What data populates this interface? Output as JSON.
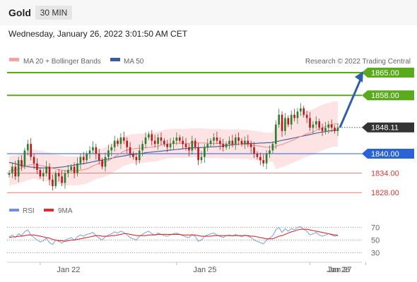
{
  "header": {
    "instrument": "Gold",
    "timeframe": "30 MIN",
    "datetime": "Wednesday, January 26, 2022 3:01:50 AM CET"
  },
  "legend": {
    "bollinger": "MA 20 + Bollinger Bands",
    "ma50": "MA 50",
    "credit": "Research © 2022 Trading Central",
    "rsi": "RSI",
    "rsi_ma": "9MA"
  },
  "colors": {
    "resistance": "#5aaa1e",
    "pivot": "#2a62d8",
    "support": "#e67b7b",
    "current": "#333333",
    "arrow": "#2f5fa6",
    "bollinger_band": "#fde3e3",
    "ma20": "#f08c8c",
    "ma50": "#3a5e95",
    "candle_up": "#2e7d32",
    "candle_down": "#b71c1c",
    "rsi": "#7a9ee0",
    "rsi_ma": "#d63030"
  },
  "chart_data": [
    {
      "type": "candlestick",
      "x_ticks": [
        "Jan 22",
        "Jan 25",
        "Jan 26",
        "Jan 27"
      ],
      "ylim": [
        1824,
        1868
      ],
      "levels": [
        {
          "label": "1865.00",
          "value": 1865.0,
          "kind": "resistance"
        },
        {
          "label": "1858.00",
          "value": 1858.0,
          "kind": "resistance"
        },
        {
          "label": "1848.11",
          "value": 1848.11,
          "kind": "current"
        },
        {
          "label": "1840.00",
          "value": 1840.0,
          "kind": "pivot"
        },
        {
          "label": "1834.00",
          "value": 1834.0,
          "kind": "support"
        },
        {
          "label": "1828.00",
          "value": 1828.0,
          "kind": "support"
        }
      ],
      "close": [
        1834,
        1836,
        1833,
        1838,
        1836,
        1841,
        1843,
        1839,
        1837,
        1835,
        1833,
        1834,
        1836,
        1832,
        1830,
        1834,
        1833,
        1831,
        1834,
        1835,
        1836,
        1834,
        1837,
        1839,
        1838,
        1840,
        1841,
        1842,
        1840,
        1838,
        1836,
        1839,
        1841,
        1842,
        1844,
        1843,
        1845,
        1844,
        1842,
        1840,
        1839,
        1838,
        1841,
        1843,
        1845,
        1846,
        1844,
        1843,
        1845,
        1844,
        1843,
        1842,
        1843,
        1844,
        1845,
        1844,
        1843,
        1842,
        1841,
        1844,
        1842,
        1838,
        1839,
        1842,
        1843,
        1844,
        1845,
        1844,
        1843,
        1842,
        1843,
        1844,
        1843,
        1845,
        1844,
        1843,
        1844,
        1843,
        1842,
        1840,
        1839,
        1838,
        1837,
        1840,
        1841,
        1843,
        1849,
        1852,
        1847,
        1851,
        1849,
        1852,
        1851,
        1853,
        1854,
        1852,
        1851,
        1848,
        1849,
        1850,
        1848,
        1847,
        1848,
        1849,
        1848,
        1847,
        1848.11
      ],
      "ma20": [
        1834.6,
        1834.9,
        1835.0,
        1835.3,
        1835.6,
        1836.0,
        1836.4,
        1836.6,
        1836.8,
        1836.6,
        1836.4,
        1836.2,
        1836.0,
        1835.8,
        1835.5,
        1835.3,
        1835.1,
        1834.9,
        1834.7,
        1834.7,
        1834.8,
        1834.7,
        1834.8,
        1834.9,
        1835.1,
        1835.3,
        1835.7,
        1836.2,
        1836.6,
        1836.9,
        1837.1,
        1837.5,
        1837.9,
        1838.4,
        1839.1,
        1839.6,
        1840.2,
        1840.8,
        1841.1,
        1841.4,
        1841.5,
        1841.6,
        1841.7,
        1841.7,
        1841.8,
        1841.9,
        1842.0,
        1842.1,
        1842.3,
        1842.6,
        1842.8,
        1843.0,
        1843.1,
        1843.2,
        1843.2,
        1843.2,
        1843.1,
        1843.1,
        1843.2,
        1843.4,
        1843.4,
        1843.3,
        1843.3,
        1843.3,
        1843.2,
        1843.1,
        1843.1,
        1843.2,
        1843.1,
        1843.0,
        1843.0,
        1843.0,
        1843.0,
        1843.0,
        1843.0,
        1842.9,
        1842.9,
        1842.8,
        1842.6,
        1842.6,
        1842.4,
        1842.3,
        1842.1,
        1842.0,
        1842.0,
        1842.0,
        1842.2,
        1842.6,
        1842.8,
        1843.2,
        1843.6,
        1844.0,
        1844.4,
        1844.9,
        1845.3,
        1845.7,
        1846.1,
        1846.4,
        1846.7,
        1847.2,
        1847.6,
        1848.0,
        1848.4,
        1848.7,
        1849.0,
        1849.2,
        1849.2
      ],
      "ma50": [
        1837.3,
        1837.1,
        1836.9,
        1836.6,
        1836.4,
        1836.2,
        1836.0,
        1835.9,
        1835.8,
        1835.7,
        1835.6,
        1835.6,
        1835.6,
        1835.6,
        1835.6,
        1835.7,
        1835.8,
        1835.9,
        1836.0,
        1836.2,
        1836.3,
        1836.5,
        1836.6,
        1836.8,
        1836.9,
        1837.1,
        1837.3,
        1837.5,
        1837.7,
        1837.9,
        1838.0,
        1838.2,
        1838.4,
        1838.6,
        1838.8,
        1839.0,
        1839.2,
        1839.3,
        1839.5,
        1839.7,
        1839.8,
        1839.9,
        1840.0,
        1840.1,
        1840.3,
        1840.4,
        1840.5,
        1840.6,
        1840.7,
        1840.8,
        1840.9,
        1841.0,
        1841.1,
        1841.2,
        1841.3,
        1841.4,
        1841.5,
        1841.6,
        1841.7,
        1841.8,
        1841.8,
        1841.9,
        1841.9,
        1842.0,
        1842.0,
        1842.1,
        1842.1,
        1842.2,
        1842.3,
        1842.4,
        1842.5,
        1842.6,
        1842.7,
        1842.8,
        1842.9,
        1843.0,
        1843.1,
        1843.1,
        1843.2,
        1843.2,
        1843.2,
        1843.3,
        1843.3,
        1843.4,
        1843.4,
        1843.5,
        1843.7,
        1843.9,
        1844.1,
        1844.3,
        1844.5,
        1844.7,
        1844.9,
        1845.1,
        1845.3,
        1845.5,
        1845.7,
        1845.9,
        1846.1,
        1846.3,
        1846.5,
        1846.7,
        1846.8,
        1847.0,
        1847.1,
        1847.2,
        1847.3
      ],
      "bollinger_width": 4.5,
      "arrow": {
        "from": 1848.11,
        "to": 1865.0
      }
    },
    {
      "type": "line",
      "ylim": [
        25,
        78
      ],
      "y_ticks": [
        70,
        50,
        30
      ],
      "series": [
        {
          "name": "RSI",
          "values": [
            55,
            58,
            54,
            60,
            57,
            63,
            66,
            58,
            54,
            50,
            47,
            49,
            53,
            46,
            43,
            50,
            48,
            45,
            50,
            52,
            54,
            50,
            55,
            58,
            56,
            59,
            60,
            62,
            57,
            53,
            50,
            55,
            58,
            60,
            63,
            61,
            64,
            62,
            58,
            54,
            52,
            50,
            56,
            59,
            62,
            64,
            60,
            58,
            61,
            59,
            57,
            56,
            58,
            60,
            61,
            59,
            57,
            55,
            54,
            59,
            56,
            48,
            50,
            56,
            58,
            60,
            61,
            58,
            56,
            54,
            57,
            58,
            56,
            59,
            57,
            55,
            58,
            56,
            54,
            50,
            48,
            46,
            44,
            50,
            53,
            57,
            66,
            70,
            62,
            68,
            64,
            68,
            66,
            70,
            71,
            67,
            64,
            58,
            60,
            62,
            58,
            56,
            58,
            60,
            58,
            56,
            57
          ]
        },
        {
          "name": "9MA",
          "values": [
            54,
            55,
            55,
            56,
            56,
            57,
            58,
            58,
            58,
            57,
            56,
            55,
            54,
            53,
            51,
            50,
            49,
            49,
            48,
            49,
            50,
            50,
            51,
            52,
            53,
            54,
            55,
            56,
            57,
            57,
            56,
            56,
            56,
            57,
            57,
            58,
            59,
            60,
            60,
            59,
            58,
            57,
            57,
            57,
            57,
            58,
            58,
            58,
            59,
            59,
            59,
            59,
            59,
            59,
            59,
            59,
            58,
            58,
            58,
            58,
            58,
            57,
            56,
            56,
            56,
            56,
            57,
            57,
            57,
            57,
            57,
            57,
            57,
            57,
            57,
            57,
            57,
            57,
            56,
            56,
            55,
            54,
            53,
            52,
            52,
            52,
            54,
            56,
            57,
            59,
            61,
            63,
            64,
            66,
            67,
            67,
            67,
            66,
            65,
            64,
            63,
            62,
            61,
            60,
            59,
            58,
            58
          ]
        }
      ]
    }
  ]
}
